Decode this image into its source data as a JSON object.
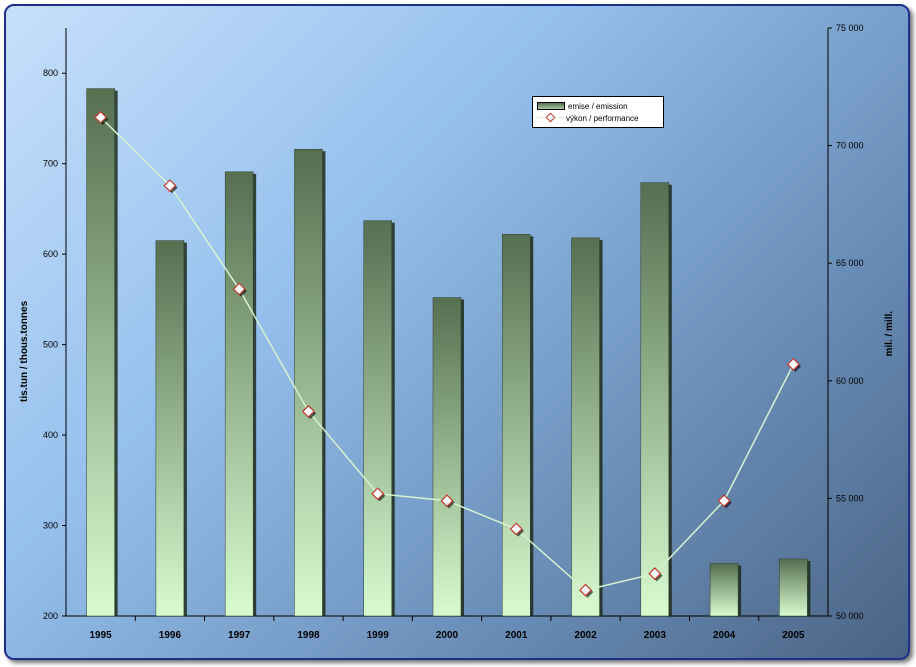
{
  "chart_data": {
    "type": "bar+line",
    "title": "",
    "categories": [
      "1995",
      "1996",
      "1997",
      "1998",
      "1999",
      "2000",
      "2001",
      "2002",
      "2003",
      "2004",
      "2005"
    ],
    "series": [
      {
        "name": "emise / emission",
        "type": "bar",
        "axis": "left",
        "values": [
          783,
          615,
          691,
          716,
          637,
          552,
          622,
          618,
          679,
          258,
          263
        ],
        "color_dark": "#556f50",
        "color_light": "#d8fbd0"
      },
      {
        "name": "výkon / performance",
        "type": "line",
        "axis": "right",
        "values": [
          71200,
          68300,
          63900,
          58700,
          55200,
          54900,
          53700,
          51100,
          51800,
          54900,
          60700
        ],
        "line_color": "#d6f2d0",
        "marker_fill": "#ffffff",
        "marker_stroke": "#c0392b"
      }
    ],
    "y_left": {
      "label": "tis.tun / thous.tonnes",
      "ylim": [
        200,
        850
      ],
      "ticks": [
        200,
        300,
        400,
        500,
        600,
        700,
        800
      ],
      "tick_labels": [
        "200",
        "300",
        "400",
        "500",
        "600",
        "700",
        "800"
      ]
    },
    "y_right": {
      "label": "mil. / mill.",
      "ylim": [
        50000,
        75000
      ],
      "ticks": [
        50000,
        55000,
        60000,
        65000,
        70000,
        75000
      ],
      "tick_labels": [
        "50 000",
        "55 000",
        "60 000",
        "65 000",
        "70 000",
        "75 000"
      ]
    },
    "grid": false,
    "legend_position": "top-right-inside"
  },
  "legend": {
    "bar_label": "emise / emission",
    "line_label": "výkon / performance"
  }
}
